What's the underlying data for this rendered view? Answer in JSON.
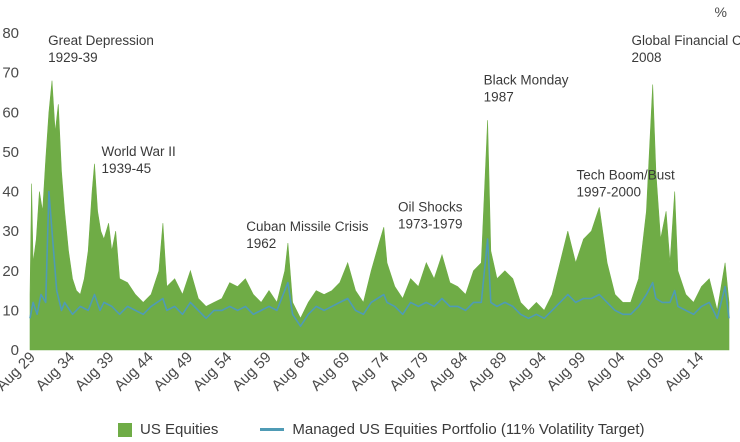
{
  "chart_data": {
    "type": "area",
    "unit_label": "%",
    "ylim": [
      0,
      80
    ],
    "yticks": [
      0,
      10,
      20,
      30,
      40,
      50,
      60,
      70,
      80
    ],
    "xlim": [
      1929.6,
      2018.5
    ],
    "xticks": [
      {
        "label": "Aug 29",
        "x": 1929.6
      },
      {
        "label": "Aug 34",
        "x": 1934.6
      },
      {
        "label": "Aug 39",
        "x": 1939.6
      },
      {
        "label": "Aug 44",
        "x": 1944.6
      },
      {
        "label": "Aug 49",
        "x": 1949.6
      },
      {
        "label": "Aug 54",
        "x": 1954.6
      },
      {
        "label": "Aug 59",
        "x": 1959.6
      },
      {
        "label": "Aug 64",
        "x": 1964.6
      },
      {
        "label": "Aug 69",
        "x": 1969.6
      },
      {
        "label": "Aug 74",
        "x": 1974.6
      },
      {
        "label": "Aug 79",
        "x": 1979.6
      },
      {
        "label": "Aug 84",
        "x": 1984.6
      },
      {
        "label": "Aug 89",
        "x": 1989.6
      },
      {
        "label": "Aug 94",
        "x": 1994.6
      },
      {
        "label": "Aug 99",
        "x": 1999.6
      },
      {
        "label": "Aug 04",
        "x": 2004.6
      },
      {
        "label": "Aug 09",
        "x": 2009.6
      },
      {
        "label": "Aug 14",
        "x": 2014.6
      }
    ],
    "grid": false,
    "legend_position": "bottom",
    "series": [
      {
        "name": "US Equities",
        "color": "#6fac46",
        "style": "area",
        "points": [
          [
            1929.6,
            14
          ],
          [
            1929.8,
            42
          ],
          [
            1930.0,
            22
          ],
          [
            1930.4,
            28
          ],
          [
            1930.8,
            40
          ],
          [
            1931.2,
            35
          ],
          [
            1931.6,
            48
          ],
          [
            1932.0,
            60
          ],
          [
            1932.4,
            68
          ],
          [
            1932.8,
            55
          ],
          [
            1933.2,
            62
          ],
          [
            1933.6,
            45
          ],
          [
            1934.0,
            35
          ],
          [
            1934.5,
            25
          ],
          [
            1935.0,
            18
          ],
          [
            1935.5,
            15
          ],
          [
            1936.0,
            14
          ],
          [
            1936.5,
            18
          ],
          [
            1937.0,
            25
          ],
          [
            1937.5,
            40
          ],
          [
            1937.8,
            47
          ],
          [
            1938.2,
            35
          ],
          [
            1938.6,
            30
          ],
          [
            1939.0,
            28
          ],
          [
            1939.6,
            32
          ],
          [
            1940.0,
            25
          ],
          [
            1940.5,
            30
          ],
          [
            1941.0,
            18
          ],
          [
            1942.0,
            17
          ],
          [
            1943.0,
            14
          ],
          [
            1944.0,
            12
          ],
          [
            1945.0,
            14
          ],
          [
            1946.0,
            20
          ],
          [
            1946.5,
            32
          ],
          [
            1947.0,
            16
          ],
          [
            1948.0,
            18
          ],
          [
            1949.0,
            14
          ],
          [
            1950.0,
            20
          ],
          [
            1951.0,
            13
          ],
          [
            1952.0,
            11
          ],
          [
            1953.0,
            12
          ],
          [
            1954.0,
            13
          ],
          [
            1955.0,
            17
          ],
          [
            1956.0,
            16
          ],
          [
            1957.0,
            18
          ],
          [
            1958.0,
            14
          ],
          [
            1959.0,
            12
          ],
          [
            1960.0,
            15
          ],
          [
            1961.0,
            12
          ],
          [
            1962.0,
            20
          ],
          [
            1962.4,
            27
          ],
          [
            1963.0,
            12
          ],
          [
            1964.0,
            8
          ],
          [
            1965.0,
            12
          ],
          [
            1966.0,
            15
          ],
          [
            1967.0,
            14
          ],
          [
            1968.0,
            15
          ],
          [
            1969.0,
            17
          ],
          [
            1970.0,
            22
          ],
          [
            1971.0,
            15
          ],
          [
            1972.0,
            12
          ],
          [
            1973.0,
            20
          ],
          [
            1974.0,
            27
          ],
          [
            1974.6,
            31
          ],
          [
            1975.0,
            22
          ],
          [
            1976.0,
            16
          ],
          [
            1977.0,
            13
          ],
          [
            1978.0,
            18
          ],
          [
            1979.0,
            16
          ],
          [
            1980.0,
            22
          ],
          [
            1981.0,
            18
          ],
          [
            1982.0,
            24
          ],
          [
            1983.0,
            17
          ],
          [
            1984.0,
            16
          ],
          [
            1985.0,
            14
          ],
          [
            1986.0,
            20
          ],
          [
            1987.0,
            22
          ],
          [
            1987.8,
            58
          ],
          [
            1988.2,
            25
          ],
          [
            1989.0,
            18
          ],
          [
            1990.0,
            20
          ],
          [
            1991.0,
            18
          ],
          [
            1992.0,
            12
          ],
          [
            1993.0,
            10
          ],
          [
            1994.0,
            12
          ],
          [
            1995.0,
            10
          ],
          [
            1996.0,
            14
          ],
          [
            1997.0,
            22
          ],
          [
            1998.0,
            30
          ],
          [
            1999.0,
            22
          ],
          [
            2000.0,
            28
          ],
          [
            2001.0,
            30
          ],
          [
            2002.0,
            36
          ],
          [
            2003.0,
            22
          ],
          [
            2004.0,
            14
          ],
          [
            2005.0,
            12
          ],
          [
            2006.0,
            12
          ],
          [
            2007.0,
            18
          ],
          [
            2008.0,
            35
          ],
          [
            2008.8,
            67
          ],
          [
            2009.2,
            45
          ],
          [
            2009.8,
            28
          ],
          [
            2010.5,
            35
          ],
          [
            2011.0,
            22
          ],
          [
            2011.6,
            40
          ],
          [
            2012.0,
            20
          ],
          [
            2013.0,
            14
          ],
          [
            2014.0,
            12
          ],
          [
            2015.0,
            16
          ],
          [
            2016.0,
            18
          ],
          [
            2017.0,
            10
          ],
          [
            2018.0,
            22
          ],
          [
            2018.5,
            12
          ]
        ]
      },
      {
        "name": "Managed US Equities Portfolio (11% Volatility Target)",
        "color": "#4f9bb5",
        "style": "line",
        "points": [
          [
            1929.6,
            8
          ],
          [
            1930.0,
            12
          ],
          [
            1930.5,
            9
          ],
          [
            1931.0,
            14
          ],
          [
            1931.6,
            12
          ],
          [
            1932.0,
            40
          ],
          [
            1932.4,
            30
          ],
          [
            1933.0,
            15
          ],
          [
            1933.6,
            10
          ],
          [
            1934.0,
            12
          ],
          [
            1935.0,
            9
          ],
          [
            1936.0,
            11
          ],
          [
            1937.0,
            10
          ],
          [
            1937.8,
            14
          ],
          [
            1938.5,
            10
          ],
          [
            1939.0,
            12
          ],
          [
            1940.0,
            11
          ],
          [
            1941.0,
            9
          ],
          [
            1942.0,
            11
          ],
          [
            1943.0,
            10
          ],
          [
            1944.0,
            9
          ],
          [
            1945.0,
            11
          ],
          [
            1946.5,
            13
          ],
          [
            1947.0,
            10
          ],
          [
            1948.0,
            11
          ],
          [
            1949.0,
            9
          ],
          [
            1950.0,
            12
          ],
          [
            1951.0,
            10
          ],
          [
            1952.0,
            8
          ],
          [
            1953.0,
            10
          ],
          [
            1954.0,
            10
          ],
          [
            1955.0,
            11
          ],
          [
            1956.0,
            10
          ],
          [
            1957.0,
            11
          ],
          [
            1958.0,
            9
          ],
          [
            1959.0,
            10
          ],
          [
            1960.0,
            11
          ],
          [
            1961.0,
            10
          ],
          [
            1962.4,
            17
          ],
          [
            1963.0,
            9
          ],
          [
            1964.0,
            6
          ],
          [
            1965.0,
            9
          ],
          [
            1966.0,
            11
          ],
          [
            1967.0,
            10
          ],
          [
            1968.0,
            11
          ],
          [
            1969.0,
            12
          ],
          [
            1970.0,
            13
          ],
          [
            1971.0,
            10
          ],
          [
            1972.0,
            9
          ],
          [
            1973.0,
            12
          ],
          [
            1974.6,
            14
          ],
          [
            1975.0,
            12
          ],
          [
            1976.0,
            11
          ],
          [
            1977.0,
            9
          ],
          [
            1978.0,
            12
          ],
          [
            1979.0,
            11
          ],
          [
            1980.0,
            12
          ],
          [
            1981.0,
            11
          ],
          [
            1982.0,
            13
          ],
          [
            1983.0,
            11
          ],
          [
            1984.0,
            11
          ],
          [
            1985.0,
            10
          ],
          [
            1986.0,
            12
          ],
          [
            1987.0,
            12
          ],
          [
            1987.8,
            28
          ],
          [
            1988.2,
            12
          ],
          [
            1989.0,
            11
          ],
          [
            1990.0,
            12
          ],
          [
            1991.0,
            11
          ],
          [
            1992.0,
            9
          ],
          [
            1993.0,
            8
          ],
          [
            1994.0,
            9
          ],
          [
            1995.0,
            8
          ],
          [
            1996.0,
            10
          ],
          [
            1997.0,
            12
          ],
          [
            1998.0,
            14
          ],
          [
            1999.0,
            12
          ],
          [
            2000.0,
            13
          ],
          [
            2001.0,
            13
          ],
          [
            2002.0,
            14
          ],
          [
            2003.0,
            12
          ],
          [
            2004.0,
            10
          ],
          [
            2005.0,
            9
          ],
          [
            2006.0,
            9
          ],
          [
            2007.0,
            11
          ],
          [
            2008.0,
            14
          ],
          [
            2008.8,
            17
          ],
          [
            2009.2,
            13
          ],
          [
            2010.0,
            12
          ],
          [
            2011.0,
            12
          ],
          [
            2011.6,
            15
          ],
          [
            2012.0,
            11
          ],
          [
            2013.0,
            10
          ],
          [
            2014.0,
            9
          ],
          [
            2015.0,
            11
          ],
          [
            2016.0,
            12
          ],
          [
            2017.0,
            8
          ],
          [
            2018.0,
            16
          ],
          [
            2018.5,
            8
          ]
        ]
      }
    ],
    "annotations": [
      {
        "lines": [
          "Great Depression",
          "1929-39"
        ],
        "x": 1931.9,
        "y": 77
      },
      {
        "lines": [
          "World War II",
          "1939-45"
        ],
        "x": 1938.7,
        "y": 49
      },
      {
        "lines": [
          "Cuban Missile Crisis",
          "1962"
        ],
        "x": 1957.1,
        "y": 30
      },
      {
        "lines": [
          "Oil Shocks",
          "1973-1979"
        ],
        "x": 1976.4,
        "y": 35
      },
      {
        "lines": [
          "Black Monday",
          "1987"
        ],
        "x": 1987.3,
        "y": 67
      },
      {
        "lines": [
          "Tech Boom/Bust",
          "1997-2000"
        ],
        "x": 1999.1,
        "y": 43
      },
      {
        "lines": [
          "Global Financial Crisis",
          "2008"
        ],
        "x": 2006.1,
        "y": 77
      }
    ]
  }
}
